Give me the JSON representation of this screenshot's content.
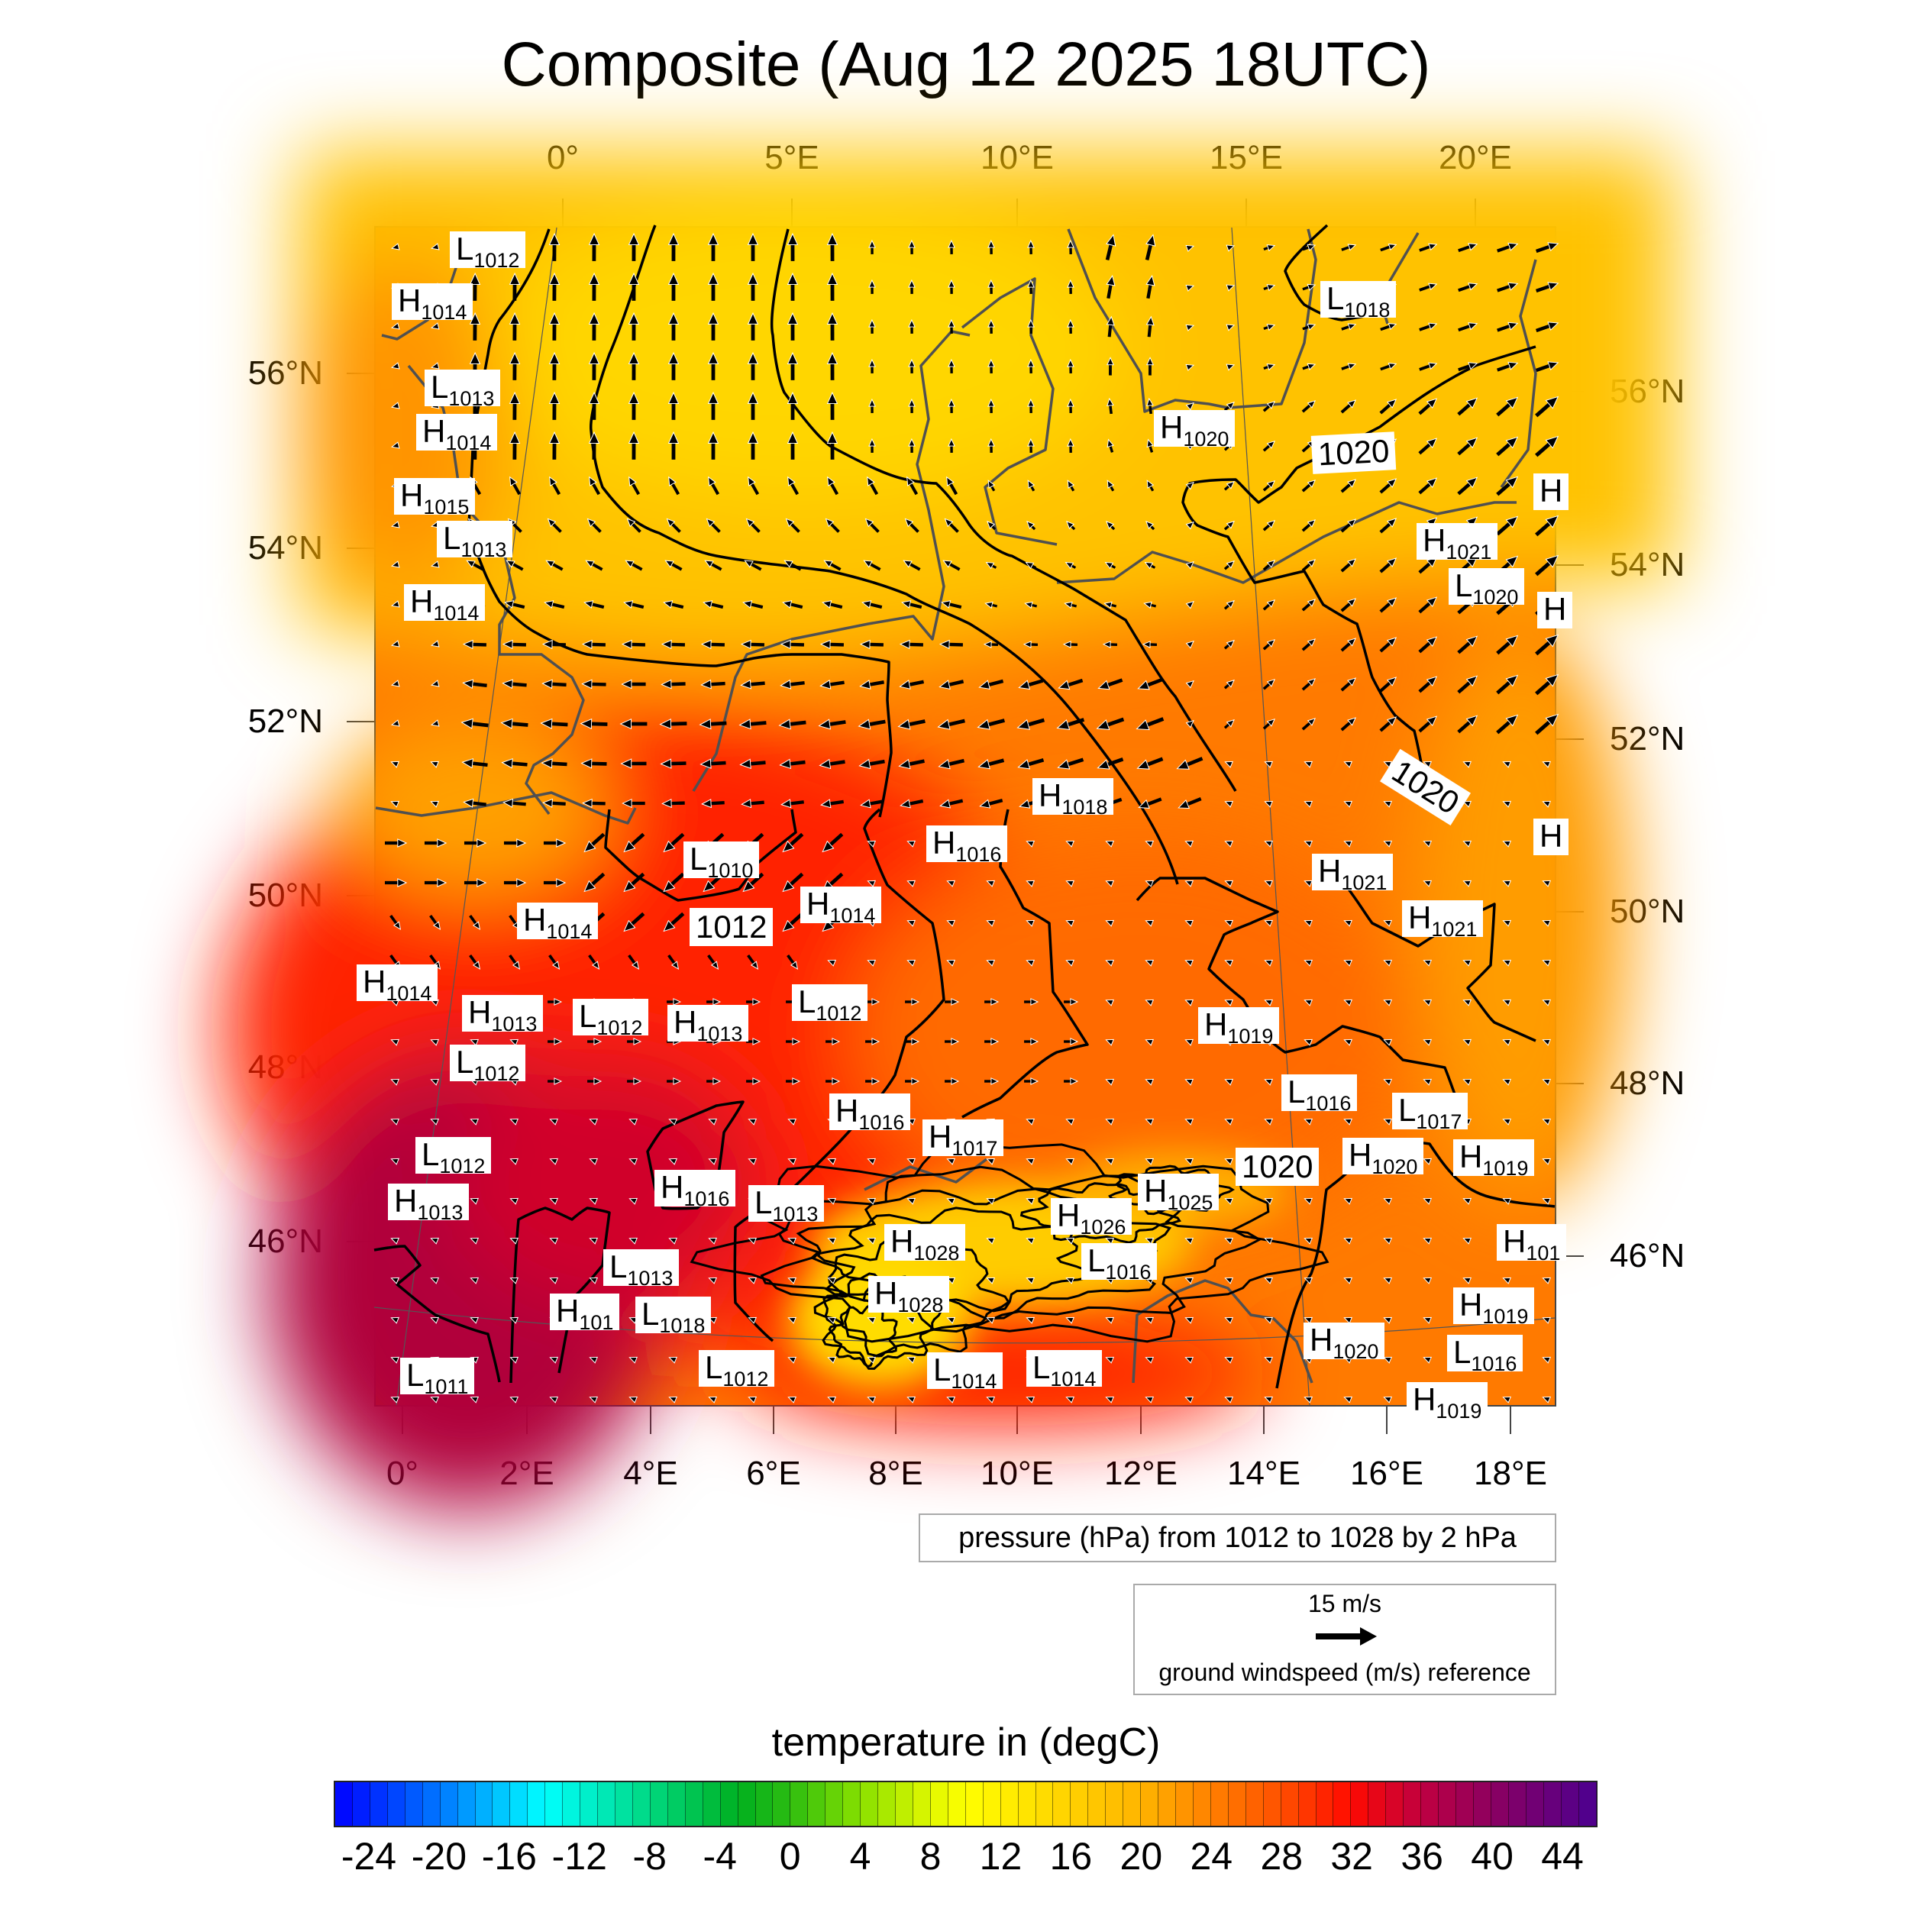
{
  "title": "Composite (Aug 12 2025 18UTC)",
  "axes": {
    "top_lon_labels": [
      "0°",
      "5°E",
      "10°E",
      "15°E",
      "20°E"
    ],
    "bottom_lon_labels": [
      "0°",
      "2°E",
      "4°E",
      "6°E",
      "8°E",
      "10°E",
      "12°E",
      "14°E",
      "16°E",
      "18°E"
    ],
    "left_lat_labels": [
      "56°N",
      "54°N",
      "52°N",
      "50°N",
      "48°N",
      "46°N"
    ],
    "right_lat_labels": [
      "56°N",
      "54°N",
      "52°N",
      "50°N",
      "48°N",
      "46°N"
    ]
  },
  "pressure_centers": [
    {
      "type": "L",
      "value": "1012"
    },
    {
      "type": "H",
      "value": "1014"
    },
    {
      "type": "L",
      "value": "1013"
    },
    {
      "type": "H",
      "value": "1014"
    },
    {
      "type": "H",
      "value": "1015"
    },
    {
      "type": "L",
      "value": "1013"
    },
    {
      "type": "H",
      "value": "1014"
    },
    {
      "type": "H",
      "value": "1020"
    },
    {
      "type": "L",
      "value": "1018"
    },
    {
      "type": "H",
      "value": "1021"
    },
    {
      "type": "L",
      "value": "1020"
    },
    {
      "type": "H",
      "value": ""
    },
    {
      "type": "H",
      "value": ""
    },
    {
      "type": "H",
      "value": ""
    },
    {
      "type": "H",
      "value": "1018"
    },
    {
      "type": "H",
      "value": "1016"
    },
    {
      "type": "L",
      "value": "1010"
    },
    {
      "type": "H",
      "value": "1014"
    },
    {
      "type": "H",
      "value": "1014"
    },
    {
      "type": "H",
      "value": "1014"
    },
    {
      "type": "H",
      "value": "1013"
    },
    {
      "type": "L",
      "value": "1012"
    },
    {
      "type": "H",
      "value": "1013"
    },
    {
      "type": "L",
      "value": "1012"
    },
    {
      "type": "L",
      "value": "1012"
    },
    {
      "type": "H",
      "value": "1021"
    },
    {
      "type": "H",
      "value": "1021"
    },
    {
      "type": "H",
      "value": "1019"
    },
    {
      "type": "L",
      "value": "1016"
    },
    {
      "type": "L",
      "value": "1017"
    },
    {
      "type": "H",
      "value": "1020"
    },
    {
      "type": "H",
      "value": "1019"
    },
    {
      "type": "H",
      "value": "1016"
    },
    {
      "type": "H",
      "value": "1017"
    },
    {
      "type": "L",
      "value": "1012"
    },
    {
      "type": "H",
      "value": "1013"
    },
    {
      "type": "H",
      "value": "1016"
    },
    {
      "type": "L",
      "value": "1013"
    },
    {
      "type": "H",
      "value": "1025"
    },
    {
      "type": "H",
      "value": "1026"
    },
    {
      "type": "L",
      "value": "1016"
    },
    {
      "type": "H",
      "value": "1028"
    },
    {
      "type": "H",
      "value": "1028"
    },
    {
      "type": "L",
      "value": "1013"
    },
    {
      "type": "H",
      "value": "101"
    },
    {
      "type": "L",
      "value": "1018"
    },
    {
      "type": "L",
      "value": "1012"
    },
    {
      "type": "L",
      "value": "1011"
    },
    {
      "type": "L",
      "value": "1014"
    },
    {
      "type": "L",
      "value": "1014"
    },
    {
      "type": "H",
      "value": "1020"
    },
    {
      "type": "H",
      "value": "1019"
    },
    {
      "type": "L",
      "value": "1016"
    },
    {
      "type": "H",
      "value": "101"
    },
    {
      "type": "H",
      "value": "1019"
    }
  ],
  "contour_labels": [
    "1020",
    "1020",
    "1012",
    "1020"
  ],
  "pressure_legend": "pressure (hPa) from 1012 to 1028 by 2 hPa",
  "wind_reference": {
    "speed_label": "15 m/s",
    "speed_value": 15,
    "caption": "ground windspeed (m/s) reference"
  },
  "colorbar": {
    "title": "temperature in (degC)",
    "min": -26,
    "max": 46,
    "step": 1,
    "tick_labels": [
      "-24",
      "-20",
      "-16",
      "-12",
      "-8",
      "-4",
      "0",
      "4",
      "8",
      "12",
      "16",
      "20",
      "24",
      "28",
      "32",
      "36",
      "40",
      "44"
    ],
    "stops": [
      [
        -26,
        "#0000ff"
      ],
      [
        -20,
        "#0078ff"
      ],
      [
        -14,
        "#00ffff"
      ],
      [
        -8,
        "#00d880"
      ],
      [
        -3,
        "#00b020"
      ],
      [
        0,
        "#2cbc10"
      ],
      [
        4,
        "#88e000"
      ],
      [
        8,
        "#e0f800"
      ],
      [
        10,
        "#ffff00"
      ],
      [
        14,
        "#ffe000"
      ],
      [
        20,
        "#ffb400"
      ],
      [
        24,
        "#ff8000"
      ],
      [
        28,
        "#ff5000"
      ],
      [
        32,
        "#ff0a00"
      ],
      [
        36,
        "#c00040"
      ],
      [
        40,
        "#8c0060"
      ],
      [
        46,
        "#4c0090"
      ]
    ]
  },
  "colors": {
    "coastline": "#505050",
    "contour": "#000000",
    "warm_north": "#ffc400",
    "hot_south": "#ff2000",
    "extreme": "#a0003c"
  }
}
